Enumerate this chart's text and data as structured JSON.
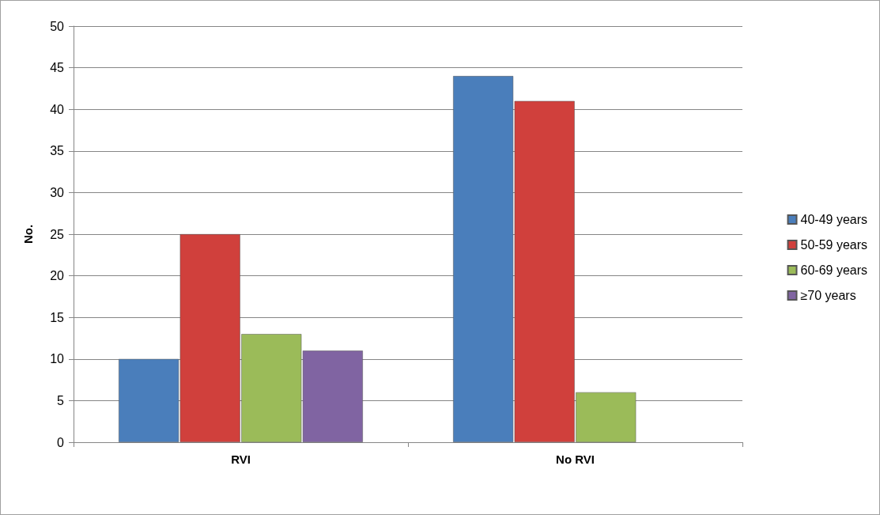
{
  "chart_data": {
    "type": "bar",
    "ylabel": "No.",
    "categories": [
      "RVI",
      "No RVI"
    ],
    "series": [
      {
        "name": "40-49 years",
        "color": "#4a7ebb",
        "values": [
          10,
          44
        ]
      },
      {
        "name": "50-59 years",
        "color": "#d0403c",
        "values": [
          25,
          41
        ]
      },
      {
        "name": "60-69 years",
        "color": "#9bbb59",
        "values": [
          13,
          6
        ]
      },
      {
        "name": "≥70 years",
        "color": "#8064a2",
        "values": [
          11,
          null
        ]
      }
    ],
    "ylim": [
      0,
      50
    ],
    "yticks": [
      0,
      5,
      10,
      15,
      20,
      25,
      30,
      35,
      40,
      45,
      50
    ],
    "grid": "y",
    "legend": "right"
  }
}
